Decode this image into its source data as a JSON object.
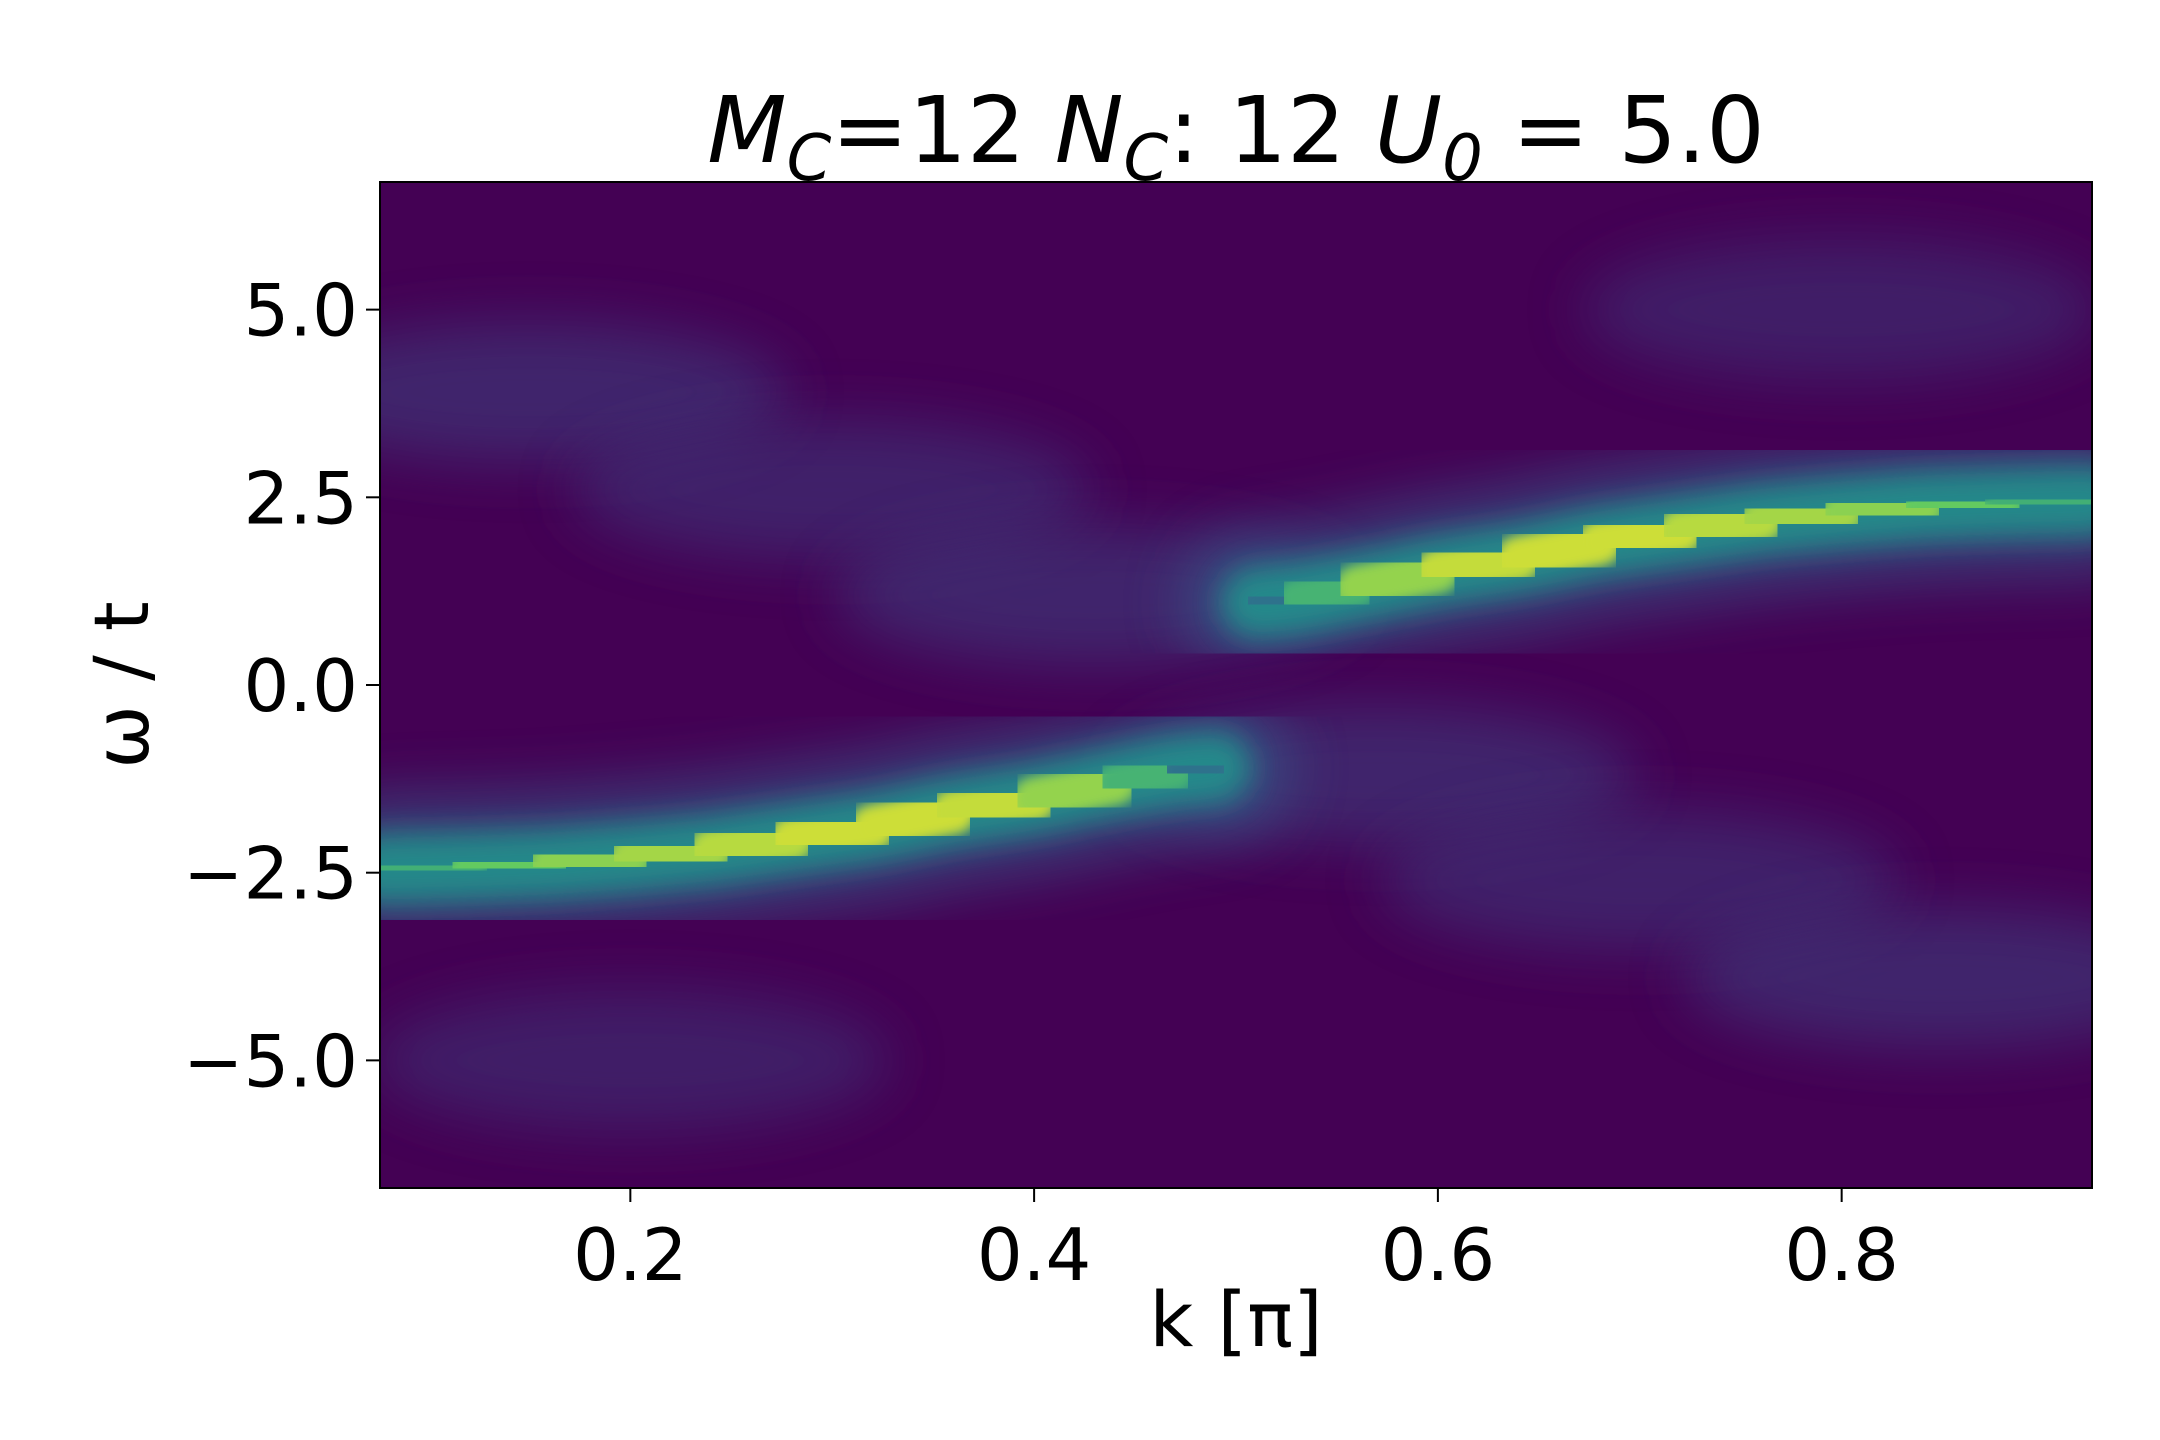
{
  "chart_data": {
    "type": "heatmap",
    "title": {
      "m_symbol": "M",
      "m_sub": "C",
      "m_value": "=12 ",
      "n_symbol": "N",
      "n_sub": "C",
      "n_value": ": 12 ",
      "u_symbol": "U",
      "u_sub": "0",
      "u_value": " = 5.0"
    },
    "xlabel": "k [π]",
    "ylabel": "ω / t",
    "xlim": [
      0.076,
      0.924
    ],
    "ylim": [
      -6.7,
      6.7
    ],
    "x_ticks": [
      {
        "value": 0.2,
        "label": "0.2"
      },
      {
        "value": 0.4,
        "label": "0.4"
      },
      {
        "value": 0.6,
        "label": "0.6"
      },
      {
        "value": 0.8,
        "label": "0.8"
      }
    ],
    "y_ticks": [
      {
        "value": 5.0,
        "label": "5.0"
      },
      {
        "value": 2.5,
        "label": "2.5"
      },
      {
        "value": 0.0,
        "label": "0.0"
      },
      {
        "value": -2.5,
        "label": "−2.5"
      },
      {
        "value": -5.0,
        "label": "−5.0"
      }
    ],
    "colormap": "viridis",
    "colors": {
      "low": "#440154",
      "mid": "#21918c",
      "high": "#fde725"
    },
    "bands": [
      {
        "name": "lower",
        "points": [
          {
            "k": 0.076,
            "omega": -2.45,
            "intensity": 0.55
          },
          {
            "k": 0.12,
            "omega": -2.42,
            "intensity": 0.72
          },
          {
            "k": 0.16,
            "omega": -2.38,
            "intensity": 0.8
          },
          {
            "k": 0.2,
            "omega": -2.3,
            "intensity": 0.84
          },
          {
            "k": 0.24,
            "omega": -2.2,
            "intensity": 0.88
          },
          {
            "k": 0.28,
            "omega": -2.05,
            "intensity": 0.9
          },
          {
            "k": 0.32,
            "omega": -1.9,
            "intensity": 0.95
          },
          {
            "k": 0.36,
            "omega": -1.68,
            "intensity": 0.9
          },
          {
            "k": 0.4,
            "omega": -1.52,
            "intensity": 0.92
          },
          {
            "k": 0.44,
            "omega": -1.3,
            "intensity": 0.75
          },
          {
            "k": 0.47,
            "omega": -1.15,
            "intensity": 0.55
          },
          {
            "k": 0.49,
            "omega": -1.1,
            "intensity": 0.2
          }
        ]
      },
      {
        "name": "upper",
        "points": [
          {
            "k": 0.51,
            "omega": 1.1,
            "intensity": 0.2
          },
          {
            "k": 0.53,
            "omega": 1.15,
            "intensity": 0.55
          },
          {
            "k": 0.56,
            "omega": 1.3,
            "intensity": 0.75
          },
          {
            "k": 0.6,
            "omega": 1.52,
            "intensity": 0.92
          },
          {
            "k": 0.64,
            "omega": 1.68,
            "intensity": 0.9
          },
          {
            "k": 0.68,
            "omega": 1.9,
            "intensity": 0.95
          },
          {
            "k": 0.72,
            "omega": 2.05,
            "intensity": 0.9
          },
          {
            "k": 0.76,
            "omega": 2.2,
            "intensity": 0.88
          },
          {
            "k": 0.8,
            "omega": 2.3,
            "intensity": 0.84
          },
          {
            "k": 0.84,
            "omega": 2.38,
            "intensity": 0.8
          },
          {
            "k": 0.88,
            "omega": 2.42,
            "intensity": 0.72
          },
          {
            "k": 0.924,
            "omega": 2.45,
            "intensity": 0.55
          }
        ]
      }
    ],
    "faint_features": [
      {
        "k": 0.15,
        "omega": 3.9,
        "intensity": 0.12
      },
      {
        "k": 0.3,
        "omega": 2.6,
        "intensity": 0.1
      },
      {
        "k": 0.43,
        "omega": 1.2,
        "intensity": 0.12
      },
      {
        "k": 0.57,
        "omega": -1.2,
        "intensity": 0.12
      },
      {
        "k": 0.7,
        "omega": -2.6,
        "intensity": 0.1
      },
      {
        "k": 0.85,
        "omega": -3.9,
        "intensity": 0.12
      },
      {
        "k": 0.2,
        "omega": -5.0,
        "intensity": 0.08
      },
      {
        "k": 0.8,
        "omega": 5.0,
        "intensity": 0.08
      }
    ],
    "grid": false
  }
}
